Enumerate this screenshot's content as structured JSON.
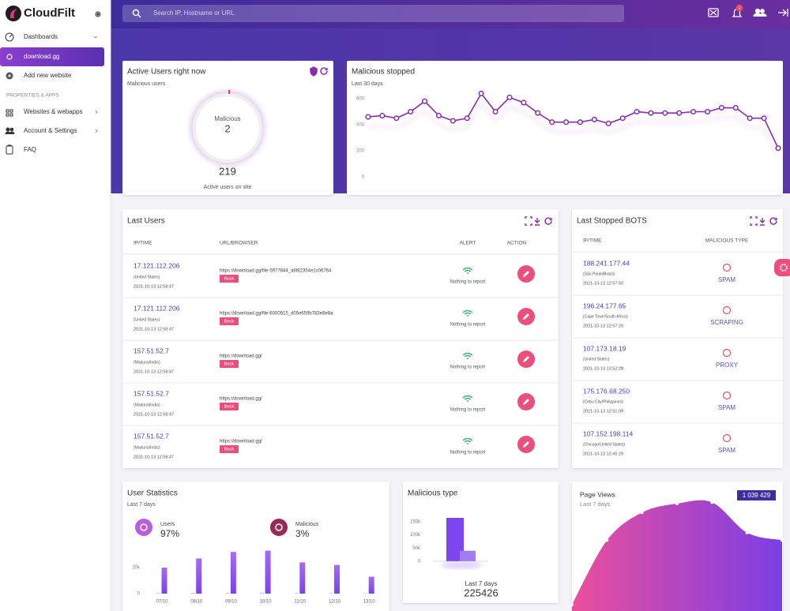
{
  "sidebar": {
    "brand": "CloudFilt",
    "nav": [
      "Dashboards",
      "download.gg",
      "Add new website"
    ],
    "section": "PROPERTIES & APPS",
    "nav2": [
      "Websites & webapps",
      "Account & Settings",
      "FAQ"
    ]
  },
  "header": {
    "search_placeholder": "Search IP, Hostname or URL",
    "notifications": 1
  },
  "active_users": {
    "title": "Active Users right now",
    "subtitle": "Malicious users",
    "gauge_label": "Malicious",
    "malicious": 2,
    "total": 219,
    "caption": "Active users on site"
  },
  "last_users": {
    "title": "Last Users",
    "columns": [
      "IP/TIME",
      "URL/BROWSER",
      "ALERT",
      "ACTION"
    ],
    "rows": [
      {
        "ip": "17.121.112.206",
        "location": "(United States)",
        "time": "2021-10-13 12:58:47",
        "url": "https://download.gg/file-5977844_a8f82354e1c06764",
        "badge": "Bock",
        "alert": "Nothing to report"
      },
      {
        "ip": "17.121.112.206",
        "location": "(United States)",
        "time": "2021-10-13 12:58:47",
        "url": "https://download.gg/file-6000915_d05e659b783e8e8a",
        "badge": "Bock",
        "alert": "Nothing to report"
      },
      {
        "ip": "157.51.52.7",
        "location": "(Madurai/India)",
        "time": "2021-10-13 12:58:47",
        "url": "https://download.gg/",
        "badge": "Bock",
        "alert": "Nothing to report"
      },
      {
        "ip": "157.51.52.7",
        "location": "(Madurai/India)",
        "time": "2021-10-13 12:58:47",
        "url": "https://download.gg/",
        "badge": "Bock",
        "alert": "Nothing to report"
      },
      {
        "ip": "157.51.52.7",
        "location": "(Madurai/India)",
        "time": "2021-10-13 12:58:47",
        "url": "https://download.gg/",
        "badge": "Bock",
        "alert": "Nothing to report"
      }
    ]
  },
  "last_bots": {
    "title": "Last Stopped BOTS",
    "columns": [
      "IP/TIME",
      "MALICIOUS TYPE"
    ],
    "rows": [
      {
        "ip": "188.241.177.44",
        "location": "(São Paulo/Brazil)",
        "time": "2021-10-13 12:57:50",
        "type": "SPAM"
      },
      {
        "ip": "196.24.177.65",
        "location": "(Cape Town/South Africa)",
        "time": "2021-10-13 12:57:20",
        "type": "SCRAPING"
      },
      {
        "ip": "107.173.18.19",
        "location": "(United States)",
        "time": "2021-10-13 12:52:28",
        "type": "PROXY"
      },
      {
        "ip": "175.176.68.250",
        "location": "(Cebu City/Philippines)",
        "time": "2021-10-13 12:51:09",
        "type": "SPAM"
      },
      {
        "ip": "107.152.198.114",
        "location": "(Chicago/United States)",
        "time": "2021-10-13 12:45:29",
        "type": "SPAM"
      }
    ]
  },
  "chart_data": [
    {
      "type": "line",
      "title": "Malicious stopped",
      "subtitle": "Last 30 days",
      "color": "#8a2bb0",
      "categories": [
        null,
        null,
        null,
        null,
        null,
        null,
        null,
        null,
        null,
        null,
        null,
        null,
        null,
        null,
        null,
        null,
        null,
        null,
        null,
        null,
        null,
        null,
        null,
        null,
        null,
        null,
        null,
        null,
        null,
        null
      ],
      "values": [
        460,
        470,
        450,
        500,
        580,
        470,
        430,
        450,
        640,
        500,
        610,
        570,
        490,
        420,
        420,
        420,
        440,
        410,
        450,
        500,
        490,
        490,
        490,
        500,
        500,
        530,
        530,
        450,
        450,
        220
      ],
      "ylim": [
        0,
        600
      ],
      "yticks": [
        0,
        200,
        400,
        600
      ]
    },
    {
      "type": "bar",
      "title": "User Statistics",
      "subtitle": "Last 7 days",
      "categories": [
        "07/10",
        "08/10",
        "09/10",
        "10/10",
        "11/10",
        "12/10",
        "13/10"
      ],
      "series": [
        {
          "name": "Users",
          "color": "#8f55f0",
          "icon_color": "#b85ddb",
          "values": [
            20000,
            27000,
            32000,
            33000,
            24000,
            22000,
            13000
          ],
          "share": 97,
          "share_label": "97%"
        },
        {
          "name": "Malicious",
          "color": "#cdb8f5",
          "icon_color": "#9b2958",
          "values": [
            500,
            600,
            600,
            700,
            500,
            500,
            400
          ],
          "share": 3,
          "share_label": "3%"
        }
      ],
      "ylim": [
        0,
        40000
      ],
      "yticks": [
        0,
        {
          "value": 20000,
          "label": "20k"
        }
      ]
    },
    {
      "type": "bar",
      "title": "Malicious type",
      "categories": [
        null,
        null
      ],
      "colors": [
        "#7b45f0",
        "#a37cf5"
      ],
      "values": [
        165000,
        40000
      ],
      "ylim": [
        0,
        180000
      ],
      "yticks": [
        0,
        {
          "value": 50000,
          "label": "50k"
        },
        {
          "value": 100000,
          "label": "100k"
        },
        {
          "value": 150000,
          "label": "150k"
        }
      ],
      "footer": "Last 7 days",
      "total": 225426
    },
    {
      "type": "area",
      "title": "Page Views",
      "subtitle": "Last 7 days",
      "total": 1039429,
      "total_label": "1 039 429",
      "categories": [
        null,
        null,
        null,
        null,
        null,
        null,
        null
      ],
      "values": [
        5,
        56,
        78,
        85,
        86,
        62,
        56
      ],
      "ylim": [
        0,
        100
      ]
    }
  ]
}
